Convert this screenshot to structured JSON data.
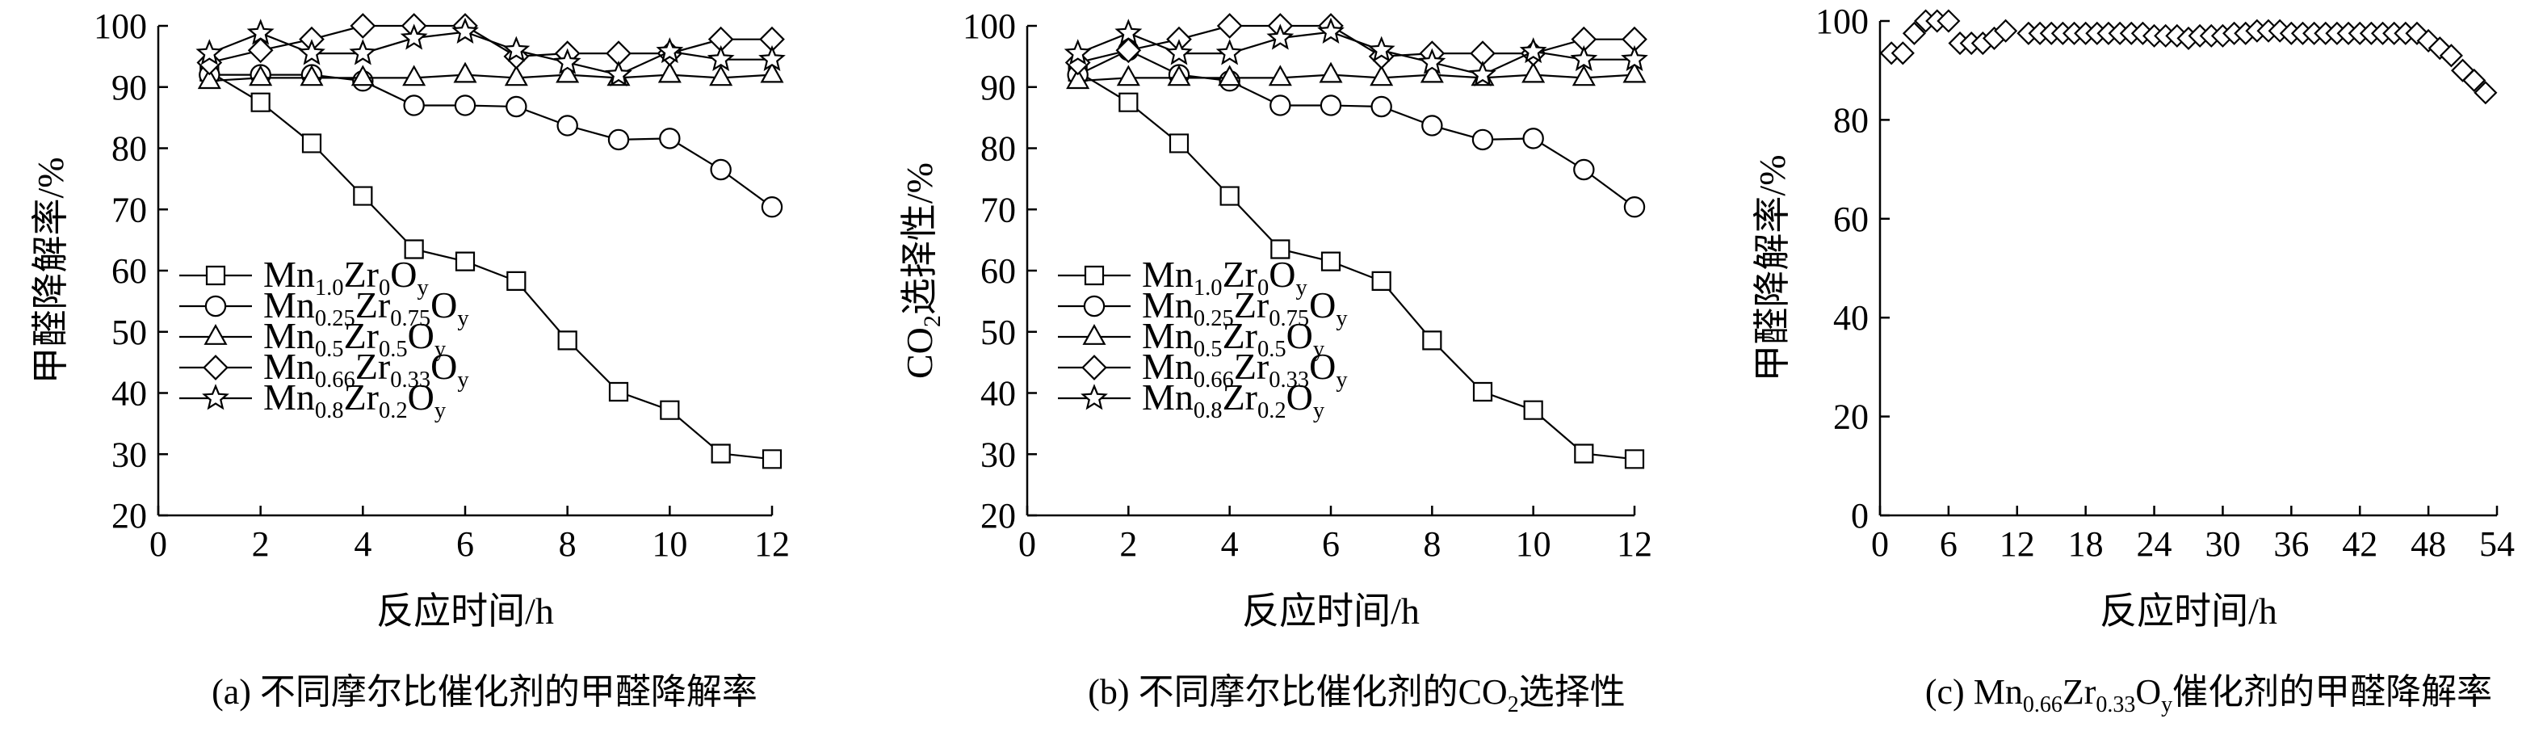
{
  "chart_data": [
    {
      "type": "line",
      "panel": "a",
      "xlabel": "反应时间/h",
      "ylabel": "甲醛降解率/%",
      "xlim": [
        0,
        12
      ],
      "ylim": [
        20,
        100
      ],
      "xticks": [
        0,
        2,
        4,
        6,
        8,
        10,
        12
      ],
      "yticks": [
        20,
        30,
        40,
        50,
        60,
        70,
        80,
        90,
        100
      ],
      "grid": false,
      "legend_position": "lower-left",
      "x": [
        1,
        2,
        3,
        4,
        5,
        6,
        7,
        8,
        9,
        10,
        11,
        12
      ],
      "series": [
        {
          "name": [
            "Mn",
            "1.0",
            "Zr",
            "0",
            "O",
            "y"
          ],
          "marker": "square",
          "values": [
            92.5,
            87.5,
            80.8,
            72.2,
            63.5,
            61.5,
            58.3,
            48.6,
            40.2,
            37.2,
            30.1,
            29.2
          ]
        },
        {
          "name": [
            "Mn",
            "0.25",
            "Zr",
            "0.75",
            "O",
            "y"
          ],
          "marker": "circle",
          "values": [
            92,
            92,
            92,
            91,
            87,
            87,
            86.8,
            83.7,
            81.4,
            81.6,
            76.5,
            70.4
          ]
        },
        {
          "name": [
            "Mn",
            "0.5",
            "Zr",
            "0.5",
            "O",
            "y"
          ],
          "marker": "triangle",
          "values": [
            91,
            91.5,
            91.5,
            91.5,
            91.5,
            92,
            91.5,
            92,
            91.5,
            92,
            91.5,
            92
          ]
        },
        {
          "name": [
            "Mn",
            "0.66",
            "Zr",
            "0.33",
            "O",
            "y"
          ],
          "marker": "diamond",
          "values": [
            94,
            96,
            97.8,
            100,
            100,
            100,
            95,
            95.5,
            95.5,
            95.5,
            97.8,
            97.8
          ]
        },
        {
          "name": [
            "Mn",
            "0.8",
            "Zr",
            "0.2",
            "O",
            "y"
          ],
          "marker": "star",
          "values": [
            95.5,
            98.8,
            95.5,
            95.5,
            98,
            99,
            96,
            94,
            92,
            95.8,
            94.5,
            94.5
          ]
        }
      ],
      "caption": "(a) 不同摩尔比催化剂的甲醛降解率"
    },
    {
      "type": "line",
      "panel": "b",
      "xlabel": "反应时间/h",
      "ylabel_parts": [
        "CO",
        "2",
        "选择性/%"
      ],
      "xlim": [
        0,
        12
      ],
      "ylim": [
        20,
        100
      ],
      "xticks": [
        0,
        2,
        4,
        6,
        8,
        10,
        12
      ],
      "yticks": [
        20,
        30,
        40,
        50,
        60,
        70,
        80,
        90,
        100
      ],
      "grid": false,
      "legend_position": "lower-left",
      "x": [
        1,
        2,
        3,
        4,
        5,
        6,
        7,
        8,
        9,
        10,
        11,
        12
      ],
      "series": [
        {
          "name": [
            "Mn",
            "1.0",
            "Zr",
            "0",
            "O",
            "y"
          ],
          "marker": "square",
          "values": [
            92.5,
            87.5,
            80.8,
            72.2,
            63.5,
            61.5,
            58.3,
            48.6,
            40.2,
            37.2,
            30.1,
            29.2
          ]
        },
        {
          "name": [
            "Mn",
            "0.25",
            "Zr",
            "0.75",
            "O",
            "y"
          ],
          "marker": "circle",
          "values": [
            92,
            96,
            92,
            91,
            87,
            87,
            86.8,
            83.7,
            81.4,
            81.6,
            76.5,
            70.4
          ]
        },
        {
          "name": [
            "Mn",
            "0.5",
            "Zr",
            "0.5",
            "O",
            "y"
          ],
          "marker": "triangle",
          "values": [
            91,
            91.5,
            91.5,
            91.5,
            91.5,
            92,
            91.5,
            92,
            91.5,
            92,
            91.5,
            92
          ]
        },
        {
          "name": [
            "Mn",
            "0.66",
            "Zr",
            "0.33",
            "O",
            "y"
          ],
          "marker": "diamond",
          "values": [
            94,
            96,
            97.8,
            100,
            100,
            100,
            95,
            95.5,
            95.5,
            95.5,
            97.8,
            97.8
          ]
        },
        {
          "name": [
            "Mn",
            "0.8",
            "Zr",
            "0.2",
            "O",
            "y"
          ],
          "marker": "star",
          "values": [
            95.5,
            98.8,
            95.5,
            95.5,
            98,
            99,
            96,
            94,
            92,
            95.8,
            94.5,
            94.5
          ]
        }
      ],
      "caption_parts": [
        "(b) 不同摩尔比催化剂的CO",
        "2",
        "选择性"
      ]
    },
    {
      "type": "line",
      "panel": "c",
      "xlabel": "反应时间/h",
      "ylabel": "甲醛降解率/%",
      "xlim": [
        0,
        54
      ],
      "ylim": [
        0,
        100
      ],
      "xticks": [
        0,
        6,
        12,
        18,
        24,
        30,
        36,
        42,
        48,
        54
      ],
      "yticks": [
        0,
        20,
        40,
        60,
        80,
        100
      ],
      "grid": false,
      "x": [
        1,
        2,
        3,
        4,
        5,
        6,
        7,
        8,
        9,
        10,
        11,
        13,
        14,
        15,
        16,
        17,
        18,
        19,
        20,
        21,
        22,
        23,
        24,
        25,
        26,
        27,
        28,
        29,
        30,
        31,
        32,
        33,
        34,
        35,
        36,
        37,
        38,
        39,
        40,
        41,
        42,
        43,
        44,
        45,
        46,
        47,
        48,
        49,
        50,
        51,
        52,
        53
      ],
      "series": [
        {
          "name": "",
          "marker": "diamond",
          "values": [
            93.5,
            93.5,
            97.5,
            100,
            100,
            100,
            95.5,
            95.5,
            95.5,
            96.5,
            98,
            97.5,
            97.5,
            97.5,
            97.5,
            97.5,
            97.5,
            97.5,
            97.5,
            97.5,
            97.5,
            97.5,
            97,
            97,
            97,
            96.5,
            97,
            97,
            97,
            97.5,
            97.5,
            98,
            98,
            98,
            97.5,
            97.5,
            97.5,
            97.5,
            97.5,
            97.5,
            97.5,
            97.5,
            97.5,
            97.5,
            97.5,
            97.5,
            96,
            94.5,
            93,
            90,
            88,
            85.5
          ]
        }
      ],
      "caption_parts": [
        "(c) Mn",
        "0.66",
        "Zr",
        "0.33",
        "O",
        "y",
        "催化剂的甲醛降解率"
      ]
    }
  ]
}
